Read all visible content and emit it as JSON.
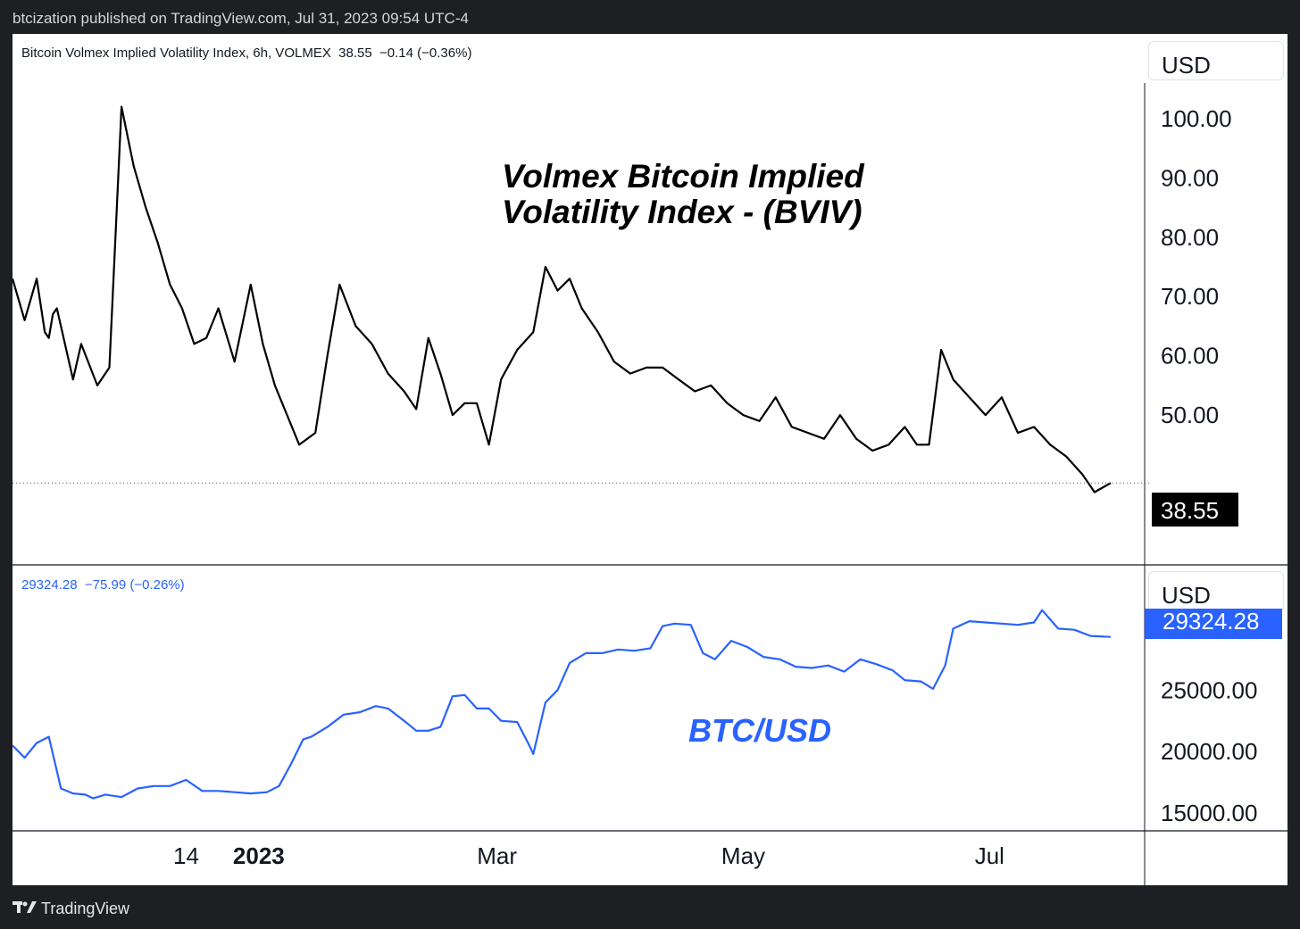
{
  "publisher_line": "btcization published on TradingView.com, Jul 31, 2023 09:54 UTC-4",
  "brand": "TradingView",
  "colors": {
    "dark_bg": "#1e1f23",
    "bviv_line": "#000000",
    "btc_line": "#2962ff",
    "btc_tag": "#2962ff",
    "bviv_tag": "#000000"
  },
  "top_pane": {
    "header": "Bitcoin Volmex Implied Volatility Index, 6h, VOLMEX  38.55  −0.14 (−0.36%)",
    "currency": "USD",
    "annotation_line1": "Volmex Bitcoin Implied",
    "annotation_line2": "Volatility Index - (BVIV)",
    "last_value_tag": "38.55"
  },
  "bottom_pane": {
    "header": "29324.28  −75.99 (−0.26%)",
    "currency": "USD",
    "annotation": "BTC/USD",
    "last_value_tag": "29324.28"
  },
  "time_axis": [
    "14",
    "2023",
    "Mar",
    "May",
    "Jul"
  ],
  "chart_data": [
    {
      "type": "line",
      "title": "Bitcoin Volmex Implied Volatility Index, 6h, VOLMEX",
      "ylim": [
        30,
        106
      ],
      "yticks": [
        "100.00",
        "90.00",
        "80.00",
        "70.00",
        "60.00",
        "50.00"
      ],
      "last_value": 38.55,
      "x": [
        "2022-11-01",
        "2022-11-04",
        "2022-11-07",
        "2022-11-09",
        "2022-11-10",
        "2022-11-11",
        "2022-11-12",
        "2022-11-16",
        "2022-11-18",
        "2022-11-22",
        "2022-11-25",
        "2022-11-28",
        "2022-12-01",
        "2022-12-04",
        "2022-12-07",
        "2022-12-10",
        "2022-12-13",
        "2022-12-16",
        "2022-12-19",
        "2022-12-22",
        "2022-12-26",
        "2022-12-30",
        "2023-01-02",
        "2023-01-05",
        "2023-01-08",
        "2023-01-11",
        "2023-01-13",
        "2023-01-15",
        "2023-01-18",
        "2023-01-21",
        "2023-01-25",
        "2023-01-29",
        "2023-02-02",
        "2023-02-06",
        "2023-02-09",
        "2023-02-12",
        "2023-02-15",
        "2023-02-18",
        "2023-02-21",
        "2023-02-24",
        "2023-02-27",
        "2023-03-02",
        "2023-03-06",
        "2023-03-10",
        "2023-03-13",
        "2023-03-16",
        "2023-03-19",
        "2023-03-22",
        "2023-03-26",
        "2023-03-30",
        "2023-04-03",
        "2023-04-07",
        "2023-04-11",
        "2023-04-15",
        "2023-04-19",
        "2023-04-23",
        "2023-04-27",
        "2023-05-01",
        "2023-05-05",
        "2023-05-09",
        "2023-05-13",
        "2023-05-17",
        "2023-05-21",
        "2023-05-25",
        "2023-05-29",
        "2023-06-02",
        "2023-06-06",
        "2023-06-10",
        "2023-06-13",
        "2023-06-16",
        "2023-06-19",
        "2023-06-22",
        "2023-06-26",
        "2023-06-30",
        "2023-07-04",
        "2023-07-08",
        "2023-07-12",
        "2023-07-16",
        "2023-07-20",
        "2023-07-24",
        "2023-07-27",
        "2023-07-31"
      ],
      "y": [
        73,
        66,
        73,
        64,
        63,
        67,
        68,
        56,
        62,
        55,
        58,
        102,
        92,
        85,
        79,
        72,
        68,
        62,
        63,
        68,
        59,
        72,
        62,
        55,
        50,
        45,
        46,
        47,
        60,
        72,
        65,
        62,
        57,
        54,
        51,
        63,
        57,
        50,
        52,
        52,
        45,
        56,
        61,
        64,
        75,
        71,
        73,
        68,
        64,
        59,
        57,
        58,
        58,
        56,
        54,
        55,
        52,
        50,
        49,
        53,
        48,
        47,
        46,
        50,
        46,
        44,
        45,
        48,
        45,
        45,
        61,
        56,
        53,
        50,
        53,
        47,
        48,
        45,
        43,
        40,
        37,
        38.55
      ]
    },
    {
      "type": "line",
      "title": "BTC/USD",
      "ylim": [
        14500,
        33000
      ],
      "yticks": [
        "25000.00",
        "20000.00",
        "15000.00"
      ],
      "last_value": 29324.28,
      "x": [
        "2022-11-01",
        "2022-11-04",
        "2022-11-07",
        "2022-11-10",
        "2022-11-13",
        "2022-11-16",
        "2022-11-19",
        "2022-11-21",
        "2022-11-24",
        "2022-11-28",
        "2022-12-02",
        "2022-12-06",
        "2022-12-10",
        "2022-12-14",
        "2022-12-18",
        "2022-12-22",
        "2022-12-26",
        "2022-12-30",
        "2023-01-03",
        "2023-01-06",
        "2023-01-09",
        "2023-01-12",
        "2023-01-14",
        "2023-01-18",
        "2023-01-22",
        "2023-01-26",
        "2023-01-30",
        "2023-02-02",
        "2023-02-06",
        "2023-02-09",
        "2023-02-12",
        "2023-02-15",
        "2023-02-18",
        "2023-02-21",
        "2023-02-24",
        "2023-02-27",
        "2023-03-02",
        "2023-03-06",
        "2023-03-09",
        "2023-03-10",
        "2023-03-13",
        "2023-03-16",
        "2023-03-19",
        "2023-03-23",
        "2023-03-27",
        "2023-03-31",
        "2023-04-04",
        "2023-04-08",
        "2023-04-11",
        "2023-04-14",
        "2023-04-18",
        "2023-04-21",
        "2023-04-24",
        "2023-04-28",
        "2023-05-02",
        "2023-05-06",
        "2023-05-10",
        "2023-05-14",
        "2023-05-18",
        "2023-05-22",
        "2023-05-26",
        "2023-05-30",
        "2023-06-03",
        "2023-06-07",
        "2023-06-10",
        "2023-06-14",
        "2023-06-17",
        "2023-06-20",
        "2023-06-22",
        "2023-06-26",
        "2023-06-30",
        "2023-07-04",
        "2023-07-08",
        "2023-07-12",
        "2023-07-14",
        "2023-07-18",
        "2023-07-22",
        "2023-07-26",
        "2023-07-31"
      ],
      "y": [
        20500,
        19500,
        20700,
        21200,
        17000,
        16600,
        16500,
        16200,
        16500,
        16300,
        17000,
        17200,
        17200,
        17700,
        16800,
        16800,
        16700,
        16600,
        16700,
        17200,
        19000,
        21000,
        21200,
        22000,
        23000,
        23200,
        23700,
        23500,
        22500,
        21700,
        21700,
        22000,
        24500,
        24600,
        23500,
        23500,
        22500,
        22400,
        20500,
        19800,
        24000,
        25000,
        27200,
        28000,
        28000,
        28300,
        28200,
        28400,
        30200,
        30400,
        30300,
        28000,
        27500,
        29000,
        28500,
        27700,
        27500,
        26900,
        26800,
        27000,
        26500,
        27500,
        27100,
        26600,
        25800,
        25700,
        25100,
        27000,
        30000,
        30600,
        30500,
        30400,
        30300,
        30500,
        31500,
        30000,
        29900,
        29400,
        29324.28
      ]
    }
  ]
}
